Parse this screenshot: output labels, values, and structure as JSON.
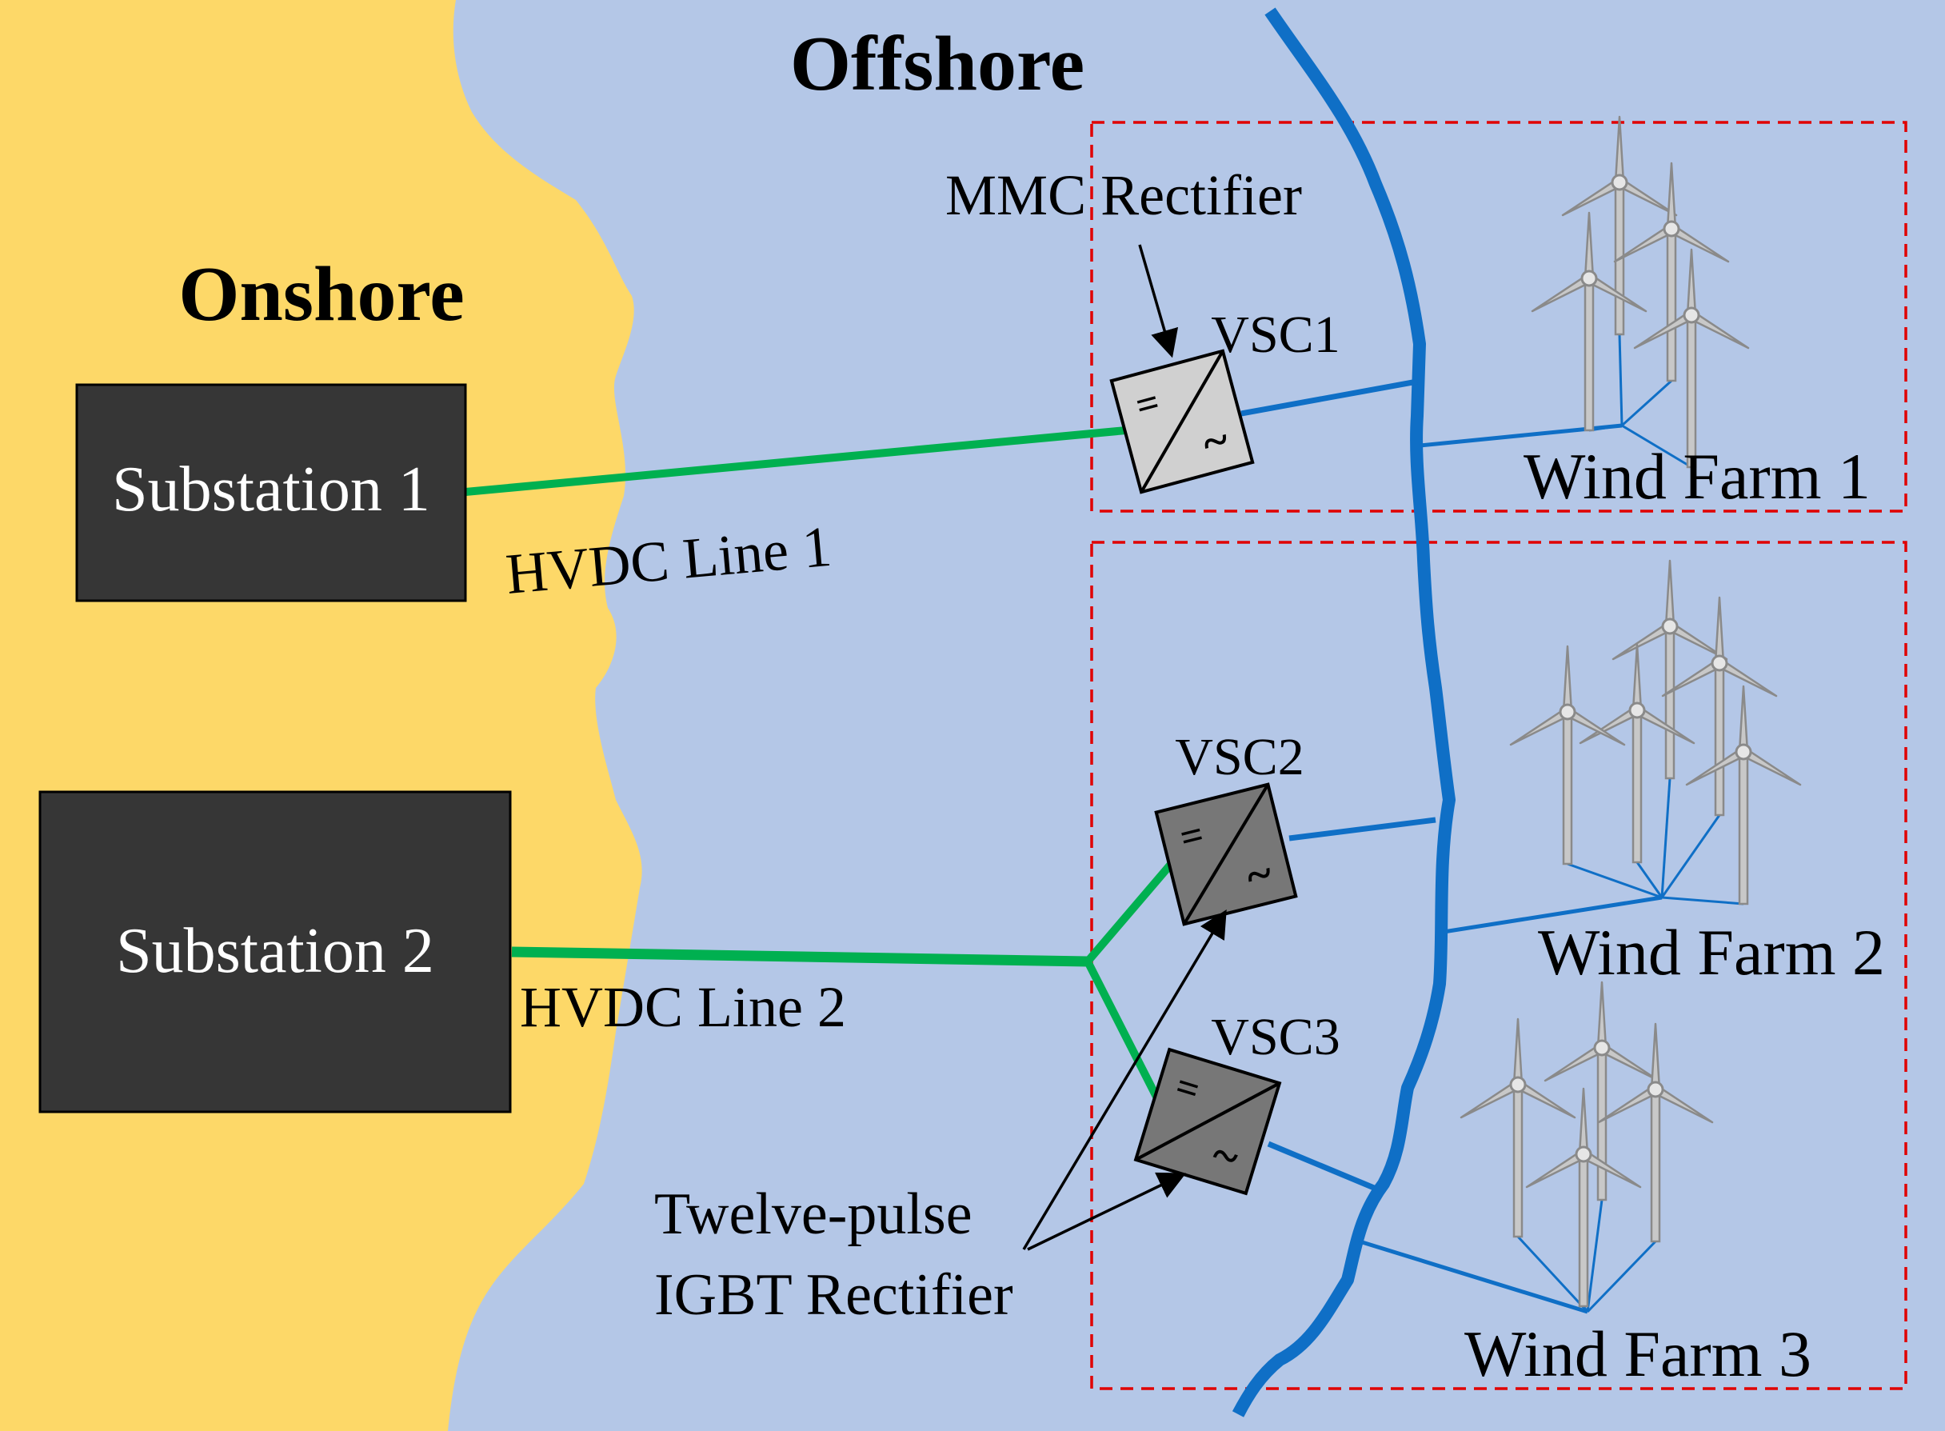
{
  "regions": {
    "offshore_label": "Offshore",
    "onshore_label": "Onshore"
  },
  "substations": [
    {
      "label": "Substation 1"
    },
    {
      "label": "Substation 2"
    }
  ],
  "lines": {
    "hvdc1_label": "HVDC Line 1",
    "hvdc2_label": "HVDC Line 2"
  },
  "converters": [
    {
      "label": "VSC1",
      "dc_symbol": "=",
      "ac_symbol": "~"
    },
    {
      "label": "VSC2",
      "dc_symbol": "=",
      "ac_symbol": "~"
    },
    {
      "label": "VSC3",
      "dc_symbol": "=",
      "ac_symbol": "~"
    }
  ],
  "annotations": {
    "mmc": "MMC Rectifier",
    "twelve_pulse_line1": "Twelve-pulse",
    "twelve_pulse_line2": "IGBT Rectifier"
  },
  "wind_farms": [
    {
      "label": "Wind Farm 1",
      "turbine_count": 4
    },
    {
      "label": "Wind Farm 2",
      "turbine_count": 5
    },
    {
      "label": "Wind Farm 3",
      "turbine_count": 4
    }
  ],
  "colors": {
    "land": "#fdd868",
    "sea": "#b4c7e7",
    "substation_fill": "#363636",
    "hvdc_line": "#00b050",
    "ac_bus": "#0f6fc6",
    "farm_boundary": "#e00000",
    "vsc1_fill": "#d0d0d0",
    "vsc23_fill": "#777777",
    "turbine": "#8a8a8a"
  }
}
